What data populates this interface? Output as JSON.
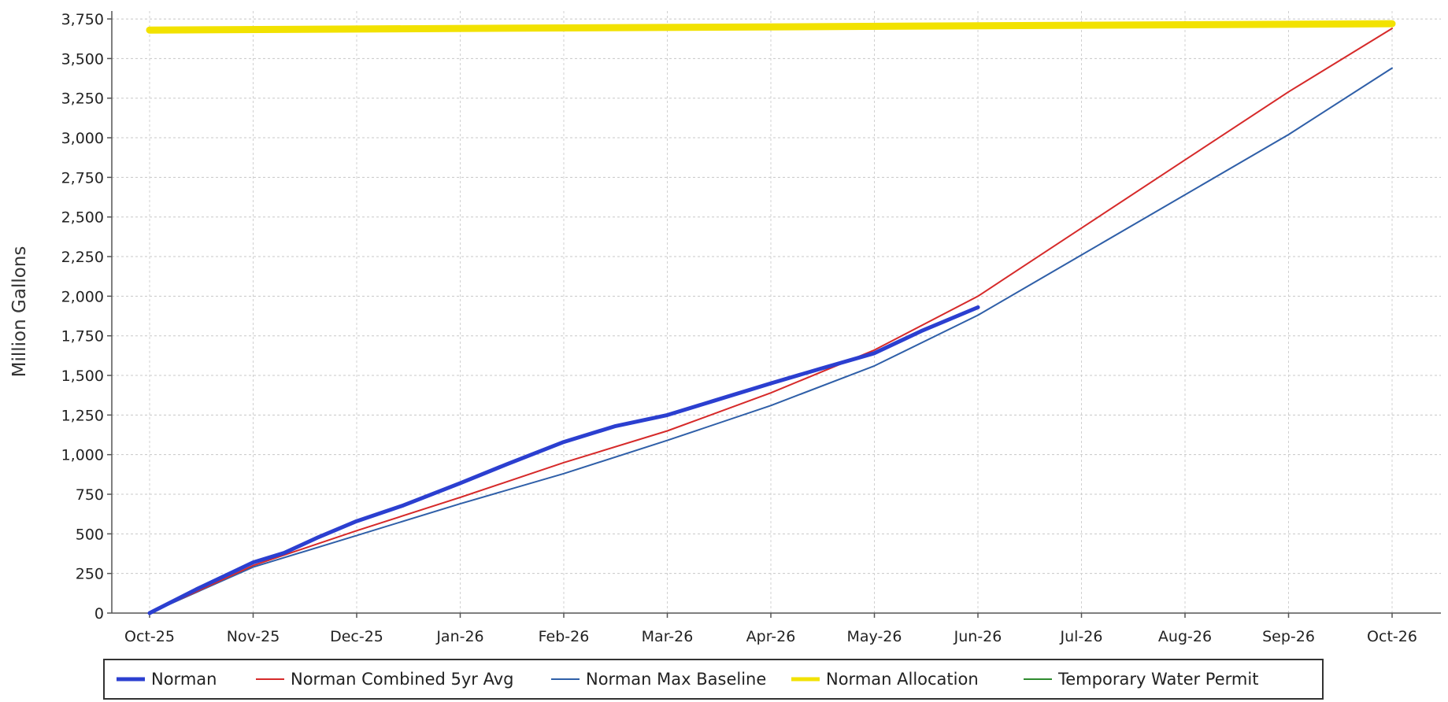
{
  "chart_data": {
    "type": "line",
    "title": "",
    "xlabel": "",
    "ylabel": "Million Gallons",
    "x_categories": [
      "Oct-25",
      "Nov-25",
      "Dec-25",
      "Jan-26",
      "Feb-26",
      "Mar-26",
      "Apr-26",
      "May-26",
      "Jun-26",
      "Jul-26",
      "Aug-26",
      "Sep-26",
      "Oct-26"
    ],
    "y_ticks": [
      "0",
      "250",
      "500",
      "750",
      "1,000",
      "1,250",
      "1,500",
      "1,750",
      "2,000",
      "2,250",
      "2,500",
      "2,750",
      "3,000",
      "3,250",
      "3,500",
      "3,750"
    ],
    "ylim": [
      0,
      3800
    ],
    "grid": true,
    "legend_position": "bottom",
    "series": [
      {
        "name": "Norman",
        "color": "#2b3fd0",
        "x": [
          "2025-10-01",
          "2025-10-15",
          "2025-11-01",
          "2025-11-10",
          "2025-11-20",
          "2025-12-01",
          "2025-12-15",
          "2026-01-01",
          "2026-01-15",
          "2026-02-01",
          "2026-02-15",
          "2026-03-01",
          "2026-03-15",
          "2026-04-01",
          "2026-04-15",
          "2026-05-01",
          "2026-05-15",
          "2026-06-01"
        ],
        "values": [
          0,
          150,
          320,
          380,
          480,
          580,
          680,
          820,
          940,
          1080,
          1180,
          1250,
          1340,
          1450,
          1540,
          1640,
          1780,
          1930
        ]
      },
      {
        "name": "Norman Combined 5yr Avg",
        "color": "#d62a2a",
        "x": [
          "2025-10-01",
          "2025-11-01",
          "2025-12-01",
          "2026-01-01",
          "2026-02-01",
          "2026-03-01",
          "2026-04-01",
          "2026-05-01",
          "2026-06-01",
          "2026-07-01",
          "2026-08-01",
          "2026-09-01",
          "2026-10-01"
        ],
        "values": [
          0,
          300,
          520,
          730,
          950,
          1150,
          1390,
          1660,
          2000,
          2430,
          2860,
          3290,
          3690
        ]
      },
      {
        "name": "Norman Max Baseline",
        "color": "#2f5fa8",
        "x": [
          "2025-10-01",
          "2025-11-01",
          "2025-12-01",
          "2026-01-01",
          "2026-02-01",
          "2026-03-01",
          "2026-04-01",
          "2026-05-01",
          "2026-06-01",
          "2026-07-01",
          "2026-08-01",
          "2026-09-01",
          "2026-10-01"
        ],
        "values": [
          0,
          290,
          490,
          690,
          880,
          1090,
          1310,
          1560,
          1880,
          2260,
          2640,
          3020,
          3440
        ]
      },
      {
        "name": "Norman Allocation",
        "color": "#f2e200",
        "x": [
          "2025-10-01",
          "2026-10-01"
        ],
        "values": [
          3680,
          3720
        ]
      },
      {
        "name": "Temporary Water Permit",
        "color": "#2e8b2e",
        "x": [],
        "values": []
      }
    ]
  }
}
